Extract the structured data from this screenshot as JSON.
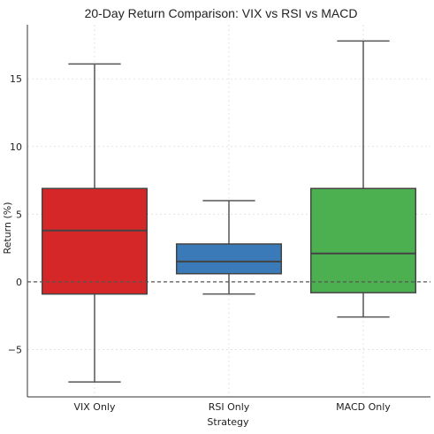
{
  "chart_data": {
    "type": "box",
    "title": "20-Day Return Comparison: VIX vs RSI vs MACD",
    "xlabel": "Strategy",
    "ylabel": "Return (%)",
    "ylim": [
      -8.5,
      19.0
    ],
    "yticks": [
      -5,
      0,
      5,
      10,
      15
    ],
    "ytick_labels": [
      "−5",
      "0",
      "5",
      "10",
      "15"
    ],
    "grid": true,
    "reference_line": {
      "y": 0,
      "style": "dashed"
    },
    "series": [
      {
        "category": "VIX Only",
        "color": "#d62728",
        "whisker_low": -7.4,
        "q1": -0.9,
        "median": 3.8,
        "q3": 6.9,
        "whisker_high": 16.1
      },
      {
        "category": "RSI Only",
        "color": "#3a7ab8",
        "whisker_low": -0.9,
        "q1": 0.6,
        "median": 1.5,
        "q3": 2.8,
        "whisker_high": 6.0
      },
      {
        "category": "MACD Only",
        "color": "#4caf50",
        "whisker_low": -2.6,
        "q1": -0.8,
        "median": 2.1,
        "q3": 6.9,
        "whisker_high": 17.8
      }
    ]
  }
}
